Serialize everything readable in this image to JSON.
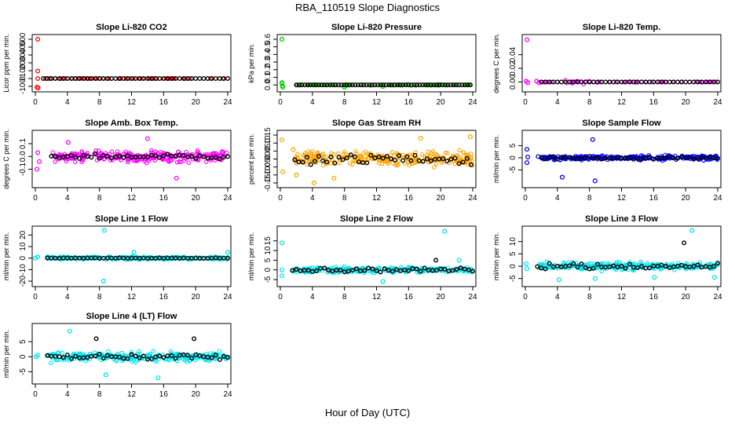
{
  "figure": {
    "title": "RBA_110519  Slope Diagnostics",
    "xlabel": "Hour of Day (UTC)"
  },
  "chart_data": [
    {
      "type": "scatter",
      "title": "Slope Li-820 CO2",
      "ylabel": "Licor ppm per min.",
      "xlim": [
        0,
        24
      ],
      "ylim": [
        -130,
        520
      ],
      "xticks": [
        0,
        4,
        8,
        12,
        16,
        20,
        24
      ],
      "yticks": [
        -100,
        0,
        100,
        200,
        300,
        400,
        500
      ],
      "ytick_labels": [
        "-100",
        "0",
        "100",
        "200",
        "300",
        "400",
        "500"
      ],
      "color": "#ff0000",
      "points_all": [
        [
          0.3,
          500
        ],
        [
          0.3,
          95
        ],
        [
          0.2,
          -110
        ],
        [
          0.35,
          -120
        ],
        [
          0.3,
          0
        ],
        [
          1.3,
          0
        ],
        [
          1.8,
          0
        ]
      ],
      "black_x": [
        1.0,
        24.0,
        0.5
      ],
      "black_y": [
        0,
        0,
        0
      ],
      "spread": 2,
      "outliers": []
    },
    {
      "type": "scatter",
      "title": "Slope Li-820 Pressure",
      "ylabel": "kPa per min.",
      "xlim": [
        0,
        24
      ],
      "ylim": [
        -0.05,
        0.62
      ],
      "xticks": [
        0,
        4,
        8,
        12,
        16,
        20,
        24
      ],
      "yticks": [
        0.0,
        0.1,
        0.2,
        0.3,
        0.4,
        0.5,
        0.6
      ],
      "ytick_labels": [
        "0.0",
        "0.1",
        "0.2",
        "0.3",
        "0.4",
        "0.5",
        "0.6"
      ],
      "color": "#00cc00",
      "points_all": [
        [
          0.2,
          0.6
        ],
        [
          0.2,
          0.03
        ],
        [
          0.25,
          -0.01
        ],
        [
          0.3,
          -0.03
        ],
        [
          0.2,
          0.02
        ],
        [
          8.0,
          -0.03
        ],
        [
          12.8,
          -0.02
        ]
      ],
      "black_x": [
        2.0,
        24.0,
        0.35
      ],
      "black_y": [
        0.0,
        0.0,
        0.0
      ],
      "spread": 0.01,
      "outliers": []
    },
    {
      "type": "scatter",
      "title": "Slope Li-820 Temp.",
      "ylabel": "degrees C per min.",
      "xlim": [
        0,
        24
      ],
      "ylim": [
        -0.01,
        0.065
      ],
      "xticks": [
        0,
        4,
        8,
        12,
        16,
        20,
        24
      ],
      "yticks": [
        0.0,
        0.02,
        0.04
      ],
      "ytick_labels": [
        "0.00",
        "0.02",
        "0.04"
      ],
      "color": "#ff00ff",
      "points_all": [
        [
          0.2,
          0.062
        ],
        [
          0.1,
          0.001
        ],
        [
          0.3,
          -0.001
        ],
        [
          1.4,
          0.001
        ],
        [
          1.7,
          -0.001
        ]
      ],
      "black_x": [
        2.0,
        24.0,
        0.5
      ],
      "black_y": [
        0,
        0,
        0
      ],
      "spread": 0.002,
      "outliers": []
    },
    {
      "type": "scatter",
      "title": "Slope Amb. Box Temp.",
      "ylabel": "degrees C per min.",
      "xlim": [
        0,
        24
      ],
      "ylim": [
        -0.22,
        0.18
      ],
      "xticks": [
        0,
        4,
        8,
        12,
        16,
        20,
        24
      ],
      "yticks": [
        -0.1,
        0.0,
        0.1
      ],
      "ytick_labels": [
        "-0.1",
        "0.0",
        "0.1"
      ],
      "color": "#ff00ff",
      "points_all": [
        [
          0.2,
          -0.1
        ],
        [
          0.3,
          0.03
        ],
        [
          0.5,
          -0.04
        ],
        [
          14.0,
          0.14
        ],
        [
          17.6,
          -0.17
        ],
        [
          4.1,
          0.11
        ]
      ],
      "black_x": [
        2.0,
        24.0,
        0.5
      ],
      "black_y": [
        -0.05,
        0.05,
        0.0
      ],
      "spread": 0.06,
      "outliers": []
    },
    {
      "type": "scatter",
      "title": "Slope Gas Stream RH",
      "ylabel": "percent per min.",
      "xlim": [
        0,
        24
      ],
      "ylim": [
        -0.16,
        0.16
      ],
      "xticks": [
        0,
        4,
        8,
        12,
        16,
        20,
        24
      ],
      "yticks": [
        -0.15,
        -0.1,
        -0.05,
        0.0,
        0.05,
        0.1,
        0.15
      ],
      "ytick_labels": [
        "-0.15",
        "-0.10",
        "-0.05",
        "0.00",
        "0.05",
        "0.10",
        "0.15"
      ],
      "color": "#ffa500",
      "points_all": [
        [
          0.2,
          0.12
        ],
        [
          0.3,
          -0.08
        ],
        [
          1.6,
          0.06
        ],
        [
          2.0,
          -0.1
        ],
        [
          4.2,
          -0.15
        ],
        [
          6.7,
          -0.12
        ],
        [
          17.5,
          0.13
        ],
        [
          23.7,
          0.14
        ]
      ],
      "black_x": [
        1.8,
        24.0,
        0.5
      ],
      "black_y": [
        -0.08,
        0.08,
        0.0
      ],
      "spread": 0.065,
      "outliers": []
    },
    {
      "type": "scatter",
      "title": "Slope Sample Flow",
      "ylabel": "ml/min per min.",
      "xlim": [
        0,
        24
      ],
      "ylim": [
        -11,
        10
      ],
      "xticks": [
        0,
        4,
        8,
        12,
        16,
        20,
        24
      ],
      "yticks": [
        -5,
        0,
        5
      ],
      "ytick_labels": [
        "-5",
        "0",
        "5"
      ],
      "color": "#0000ff",
      "points_all": [
        [
          0.2,
          3.5
        ],
        [
          0.2,
          -2
        ],
        [
          0.3,
          0.3
        ],
        [
          4.6,
          -8
        ],
        [
          8.4,
          7.5
        ],
        [
          8.7,
          -9.5
        ],
        [
          1.6,
          0.5
        ]
      ],
      "black_x": [
        2.0,
        24.0,
        0.5
      ],
      "black_y": [
        -1.5,
        1.5,
        0
      ],
      "spread": 1.3,
      "outliers": []
    },
    {
      "type": "scatter",
      "title": "Slope Line 1 Flow",
      "ylabel": "ml/min per min.",
      "xlim": [
        0,
        24
      ],
      "ylim": [
        -22,
        25
      ],
      "xticks": [
        0,
        4,
        8,
        12,
        16,
        20,
        24
      ],
      "yticks": [
        -20,
        -10,
        0,
        10,
        20
      ],
      "ytick_labels": [
        "-20",
        "-10",
        "0",
        "10",
        "20"
      ],
      "color": "#00e5ee",
      "points_all": [
        [
          0.0,
          0
        ],
        [
          0.3,
          1
        ],
        [
          8.6,
          24
        ],
        [
          8.5,
          -20
        ],
        [
          12.3,
          5
        ],
        [
          24.0,
          5
        ]
      ],
      "black_x": [
        1.5,
        24.0,
        0.5
      ],
      "black_y": [
        -0.8,
        0.8,
        0
      ],
      "spread": 1.8,
      "outliers": []
    },
    {
      "type": "scatter",
      "title": "Slope Line 2 Flow",
      "ylabel": "ml/min per min.",
      "xlim": [
        0,
        24
      ],
      "ylim": [
        -7,
        21
      ],
      "xticks": [
        0,
        4,
        8,
        12,
        16,
        20,
        24
      ],
      "yticks": [
        -5,
        0,
        5,
        10,
        15
      ],
      "ytick_labels": [
        "-5",
        "0",
        "5",
        "10",
        "15"
      ],
      "color": "#00e5ee",
      "points_all": [
        [
          0.2,
          14
        ],
        [
          0.2,
          0
        ],
        [
          0.2,
          -3
        ],
        [
          20.5,
          20
        ],
        [
          22.3,
          5
        ],
        [
          12.8,
          -6
        ]
      ],
      "black_x": [
        1.5,
        24.0,
        0.5
      ],
      "black_y": [
        -2.5,
        2.5,
        0
      ],
      "spread": 2.0,
      "outliers": [
        [
          19.4,
          5
        ]
      ]
    },
    {
      "type": "scatter",
      "title": "Slope Line 3 Flow",
      "ylabel": "ml/min per min.",
      "xlim": [
        0,
        24
      ],
      "ylim": [
        -7,
        15
      ],
      "xticks": [
        0,
        4,
        8,
        12,
        16,
        20,
        24
      ],
      "yticks": [
        -5,
        0,
        5,
        10
      ],
      "ytick_labels": [
        "-5",
        "0",
        "5",
        "10"
      ],
      "color": "#00e5ee",
      "points_all": [
        [
          0.1,
          1
        ],
        [
          0.2,
          -1
        ],
        [
          20.8,
          14.5
        ],
        [
          4.2,
          -5.5
        ],
        [
          8.7,
          -5
        ],
        [
          16.1,
          -4.5
        ],
        [
          23.6,
          -4.5
        ]
      ],
      "black_x": [
        1.5,
        24.0,
        0.5
      ],
      "black_y": [
        -2.5,
        2.5,
        0
      ],
      "spread": 2.2,
      "outliers": [
        [
          19.8,
          9.5
        ]
      ]
    },
    {
      "type": "scatter",
      "title": "Slope Line 4 (LT) Flow",
      "ylabel": "ml/min per min.",
      "xlim": [
        0,
        24
      ],
      "ylim": [
        -8,
        10
      ],
      "xticks": [
        0,
        4,
        8,
        12,
        16,
        20,
        24
      ],
      "yticks": [
        -5,
        0,
        5
      ],
      "ytick_labels": [
        "-5",
        "0",
        "5"
      ],
      "color": "#00e5ee",
      "points_all": [
        [
          0.1,
          0
        ],
        [
          0.3,
          0.5
        ],
        [
          4.3,
          8.5
        ],
        [
          8.8,
          -6
        ],
        [
          15.3,
          -7
        ],
        [
          1.6,
          0.5
        ]
      ],
      "black_x": [
        1.5,
        24.0,
        0.5
      ],
      "black_y": [
        -2.5,
        2.5,
        0
      ],
      "spread": 2.3,
      "outliers": [
        [
          7.6,
          6
        ],
        [
          19.8,
          6
        ]
      ]
    }
  ]
}
